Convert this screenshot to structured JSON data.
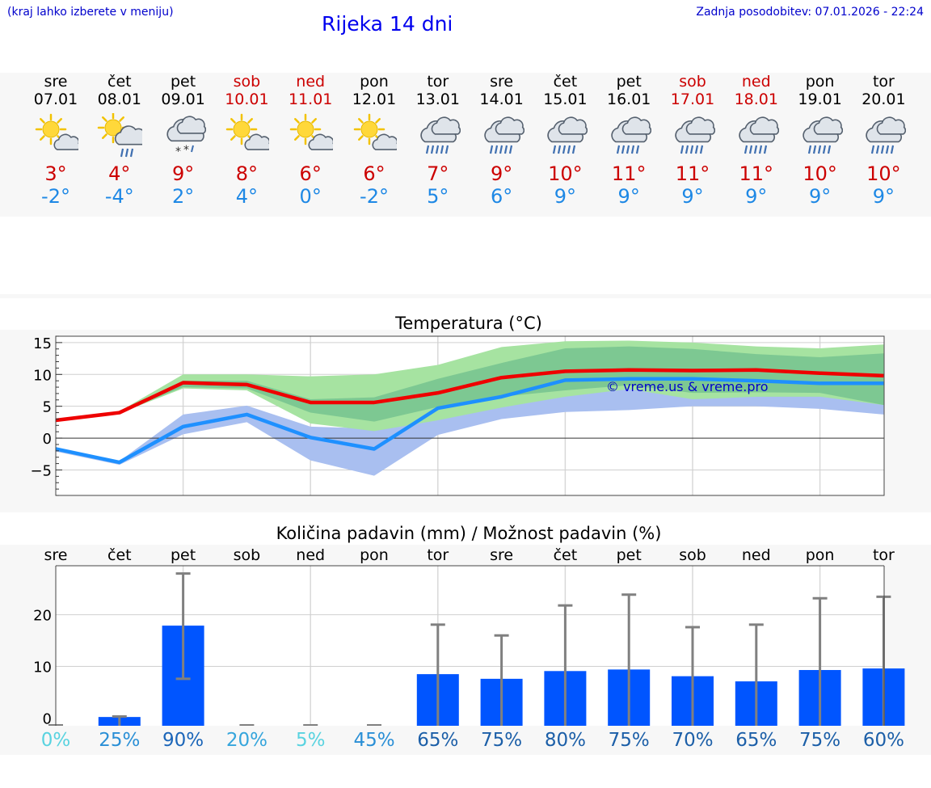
{
  "header": {
    "hint": "(kraj lahko izberete v meniju)",
    "title": "Rijeka 14 dni",
    "updated": "Zadnja posodobitev: 07.01.2026 - 22:24"
  },
  "days": [
    {
      "name": "sre",
      "date": "07.01",
      "icon": "sun-cloud-icon",
      "max": "3°",
      "min": "-2°",
      "weekend": false
    },
    {
      "name": "čet",
      "date": "08.01",
      "icon": "sun-cloud-rain-icon",
      "max": "4°",
      "min": "-4°",
      "weekend": false
    },
    {
      "name": "pet",
      "date": "09.01",
      "icon": "cloud-snow-icon",
      "max": "9°",
      "min": "2°",
      "weekend": false
    },
    {
      "name": "sob",
      "date": "10.01",
      "icon": "sun-cloud-icon",
      "max": "8°",
      "min": "4°",
      "weekend": true
    },
    {
      "name": "ned",
      "date": "11.01",
      "icon": "sun-cloud-icon",
      "max": "6°",
      "min": "0°",
      "weekend": true
    },
    {
      "name": "pon",
      "date": "12.01",
      "icon": "sun-cloud-icon",
      "max": "6°",
      "min": "-2°",
      "weekend": false
    },
    {
      "name": "tor",
      "date": "13.01",
      "icon": "cloud-rain-icon",
      "max": "7°",
      "min": "5°",
      "weekend": false
    },
    {
      "name": "sre",
      "date": "14.01",
      "icon": "cloud-rain-icon",
      "max": "9°",
      "min": "6°",
      "weekend": false
    },
    {
      "name": "čet",
      "date": "15.01",
      "icon": "cloud-rain-icon",
      "max": "10°",
      "min": "9°",
      "weekend": false
    },
    {
      "name": "pet",
      "date": "16.01",
      "icon": "cloud-rain-icon",
      "max": "11°",
      "min": "9°",
      "weekend": false
    },
    {
      "name": "sob",
      "date": "17.01",
      "icon": "cloud-rain-icon",
      "max": "11°",
      "min": "9°",
      "weekend": true
    },
    {
      "name": "ned",
      "date": "18.01",
      "icon": "cloud-rain-icon",
      "max": "11°",
      "min": "9°",
      "weekend": true
    },
    {
      "name": "pon",
      "date": "19.01",
      "icon": "cloud-rain-icon",
      "max": "10°",
      "min": "9°",
      "weekend": false
    },
    {
      "name": "tor",
      "date": "20.01",
      "icon": "cloud-rain-icon",
      "max": "10°",
      "min": "9°",
      "weekend": false
    }
  ],
  "colors": {
    "max_line": "#ee0000",
    "min_line": "#1e90ff",
    "max_band_outer": "#a6e3a1",
    "max_band_inner": "#6fbf8e",
    "min_band": "#a9bff0",
    "bar": "#0055ff",
    "error_bar": "#808080",
    "watermark": "#0000cc"
  },
  "chart_data": [
    {
      "type": "line",
      "title": "Temperatura (°C)",
      "x": [
        0,
        1,
        2,
        3,
        4,
        5,
        6,
        7,
        8,
        9,
        10,
        11,
        12,
        13
      ],
      "ylim": [
        -9,
        16
      ],
      "yticks": [
        15,
        10,
        5,
        0,
        -5
      ],
      "watermark": "© vreme.us & vreme.pro",
      "series": [
        {
          "name": "max",
          "values": [
            2.8,
            4.0,
            8.7,
            8.4,
            5.6,
            5.6,
            7.1,
            9.5,
            10.5,
            10.7,
            10.6,
            10.7,
            10.2,
            9.8
          ],
          "band_outer_hi": [
            3.0,
            4.2,
            10,
            10,
            9.7,
            10,
            11.5,
            14.3,
            15.2,
            15.3,
            15.0,
            14.4,
            14.1,
            14.7
          ],
          "band_outer_lo": [
            2.6,
            3.9,
            7.8,
            7.5,
            2.3,
            1.1,
            2.8,
            4.8,
            6.5,
            7.7,
            6.1,
            6.5,
            6.5,
            5.2
          ],
          "band_inner_hi": [
            2.9,
            4.1,
            9,
            9,
            6.1,
            6.4,
            9.3,
            11.8,
            14.1,
            14.4,
            14.0,
            13.2,
            12.7,
            13.3
          ],
          "band_inner_lo": [
            2.7,
            4.0,
            8,
            7.8,
            4,
            2.6,
            4.9,
            6.5,
            7.5,
            8.3,
            7.1,
            7.2,
            7.1,
            5.2
          ]
        },
        {
          "name": "min",
          "values": [
            -1.7,
            -3.8,
            1.8,
            3.7,
            0.1,
            -1.7,
            4.7,
            6.5,
            9.1,
            9.3,
            9.3,
            9.0,
            8.6,
            8.6
          ],
          "band_hi": [
            -1.5,
            -3.6,
            3.7,
            5.1,
            1.8,
            1.5,
            6.2,
            8.0,
            9.5,
            9.7,
            9.8,
            10.0,
            9.0,
            8.8
          ],
          "band_lo": [
            -2.1,
            -4.2,
            0.6,
            2.5,
            -3.5,
            -5.9,
            0.5,
            3.0,
            4.1,
            4.4,
            5.0,
            5.0,
            4.6,
            3.7
          ]
        }
      ]
    },
    {
      "type": "bar",
      "title": "Količina padavin (mm) / Možnost padavin (%)",
      "categories": [
        "sre",
        "čet",
        "pet",
        "sob",
        "ned",
        "pon",
        "tor",
        "sre",
        "čet",
        "pet",
        "sob",
        "ned",
        "pon",
        "tor"
      ],
      "values": [
        0,
        0.2,
        17.9,
        0,
        0,
        0,
        8.5,
        7.6,
        9.1,
        9.4,
        8.1,
        7.1,
        9.3,
        9.6
      ],
      "error_high": [
        0,
        0.3,
        28.0,
        0,
        0,
        0,
        18.1,
        16.0,
        21.8,
        23.9,
        17.6,
        18.1,
        23.2,
        23.5
      ],
      "error_low": [
        0,
        0,
        7.6,
        0,
        0,
        0,
        0,
        0,
        0,
        0,
        0,
        0,
        0,
        0
      ],
      "ylim": [
        -1.5,
        29.5
      ],
      "yticks": [
        20,
        10,
        0
      ],
      "chance": [
        "0%",
        "25%",
        "90%",
        "20%",
        "5%",
        "45%",
        "65%",
        "75%",
        "80%",
        "75%",
        "70%",
        "65%",
        "75%",
        "60%"
      ],
      "chance_colors": [
        "#59d3e0",
        "#2a8fd6",
        "#1c66b9",
        "#35a5dc",
        "#59d3e0",
        "#2a8fd6",
        "#1c5fa8",
        "#1c5fa8",
        "#1c5fa8",
        "#1c5fa8",
        "#1c5fa8",
        "#1c5fa8",
        "#1c5fa8",
        "#1c5fa8"
      ]
    }
  ]
}
